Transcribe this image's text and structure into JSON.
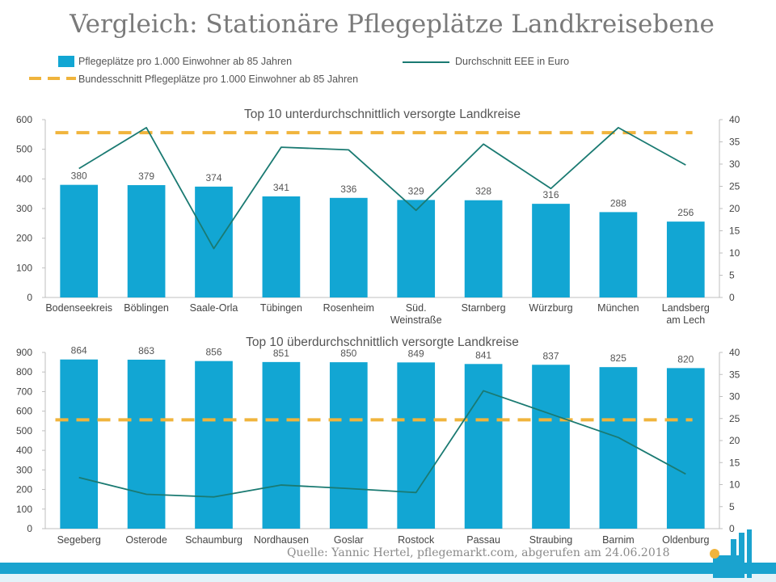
{
  "title": "Vergleich: Stationäre Pflegeplätze Landkreisebene",
  "legend": {
    "bar_label": "Pflegeplätze  pro 1.000  Einwohner  ab 85 Jahren",
    "line_label": "Durchschnitt  EEE in Euro",
    "dashed_label": "Bundesschnitt  Pflegeplätze  pro 1.000  Einwohner  ab 85 Jahren"
  },
  "colors": {
    "bar": "#12a6d3",
    "line": "#1a7a72",
    "dashed": "#f0b43c",
    "axis": "#bfbfbf",
    "text": "#555555"
  },
  "source": "Quelle: Yannic Hertel, pflegemarkt.com, abgerufen am 24.06.2018",
  "chart_data": [
    {
      "type": "bar",
      "title": "Top 10 unterdurchschnittlich versorgte Landkreise",
      "categories": [
        "Bodenseekreis",
        "Böblingen",
        "Saale-Orla",
        "Tübingen",
        "Rosenheim",
        "Süd. Weinstraße",
        "Starnberg",
        "Würzburg",
        "München",
        "Landsberg am Lech"
      ],
      "values": [
        380,
        379,
        374,
        341,
        336,
        329,
        328,
        316,
        288,
        256
      ],
      "line_values": [
        29,
        38.2,
        11,
        33.8,
        33.2,
        19.6,
        34.5,
        24.5,
        38.2,
        29.8
      ],
      "bundesschnitt": 556,
      "ylim": [
        0,
        600
      ],
      "yticks": [
        0,
        100,
        200,
        300,
        400,
        500,
        600
      ],
      "y2lim": [
        0,
        40
      ],
      "y2ticks": [
        0,
        5,
        10,
        15,
        20,
        25,
        30,
        35,
        40
      ]
    },
    {
      "type": "bar",
      "title": "Top 10 überdurchschnittlich versorgte Landkreise",
      "categories": [
        "Segeberg",
        "Osterode",
        "Schaumburg",
        "Nordhausen",
        "Goslar",
        "Rostock",
        "Passau",
        "Straubing",
        "Barnim",
        "Oldenburg"
      ],
      "values": [
        864,
        863,
        856,
        851,
        850,
        849,
        841,
        837,
        825,
        820
      ],
      "line_values": [
        11.6,
        7.8,
        7.2,
        9.9,
        9.1,
        8.2,
        31.3,
        26,
        20.7,
        12.4
      ],
      "bundesschnitt": 556,
      "ylim": [
        0,
        900
      ],
      "yticks": [
        0,
        100,
        200,
        300,
        400,
        500,
        600,
        700,
        800,
        900
      ],
      "y2lim": [
        0,
        40
      ],
      "y2ticks": [
        0,
        5,
        10,
        15,
        20,
        25,
        30,
        35,
        40
      ]
    }
  ]
}
